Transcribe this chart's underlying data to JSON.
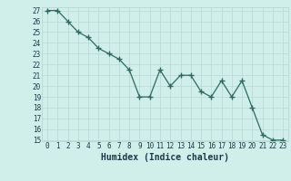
{
  "x": [
    0,
    1,
    2,
    3,
    4,
    5,
    6,
    7,
    8,
    9,
    10,
    11,
    12,
    13,
    14,
    15,
    16,
    17,
    18,
    19,
    20,
    21,
    22,
    23
  ],
  "y": [
    27,
    27,
    26,
    25,
    24.5,
    23.5,
    23,
    22.5,
    21.5,
    19,
    19,
    21.5,
    20,
    21,
    21,
    19.5,
    19,
    20.5,
    19,
    20.5,
    18,
    15.5,
    15,
    15
  ],
  "line_color": "#2e6b5e",
  "marker": "+",
  "marker_size": 4,
  "bg_color": "#d0eeea",
  "grid_color": "#b8d8d4",
  "xlabel": "Humidex (Indice chaleur)",
  "ylim": [
    15,
    27
  ],
  "xlim": [
    -0.5,
    23.5
  ],
  "yticks": [
    15,
    16,
    17,
    18,
    19,
    20,
    21,
    22,
    23,
    24,
    25,
    26,
    27
  ],
  "xticks": [
    0,
    1,
    2,
    3,
    4,
    5,
    6,
    7,
    8,
    9,
    10,
    11,
    12,
    13,
    14,
    15,
    16,
    17,
    18,
    19,
    20,
    21,
    22,
    23
  ],
  "font_color": "#1a3a4a",
  "tick_fontsize": 5.5,
  "xlabel_fontsize": 7,
  "line_width": 0.9
}
